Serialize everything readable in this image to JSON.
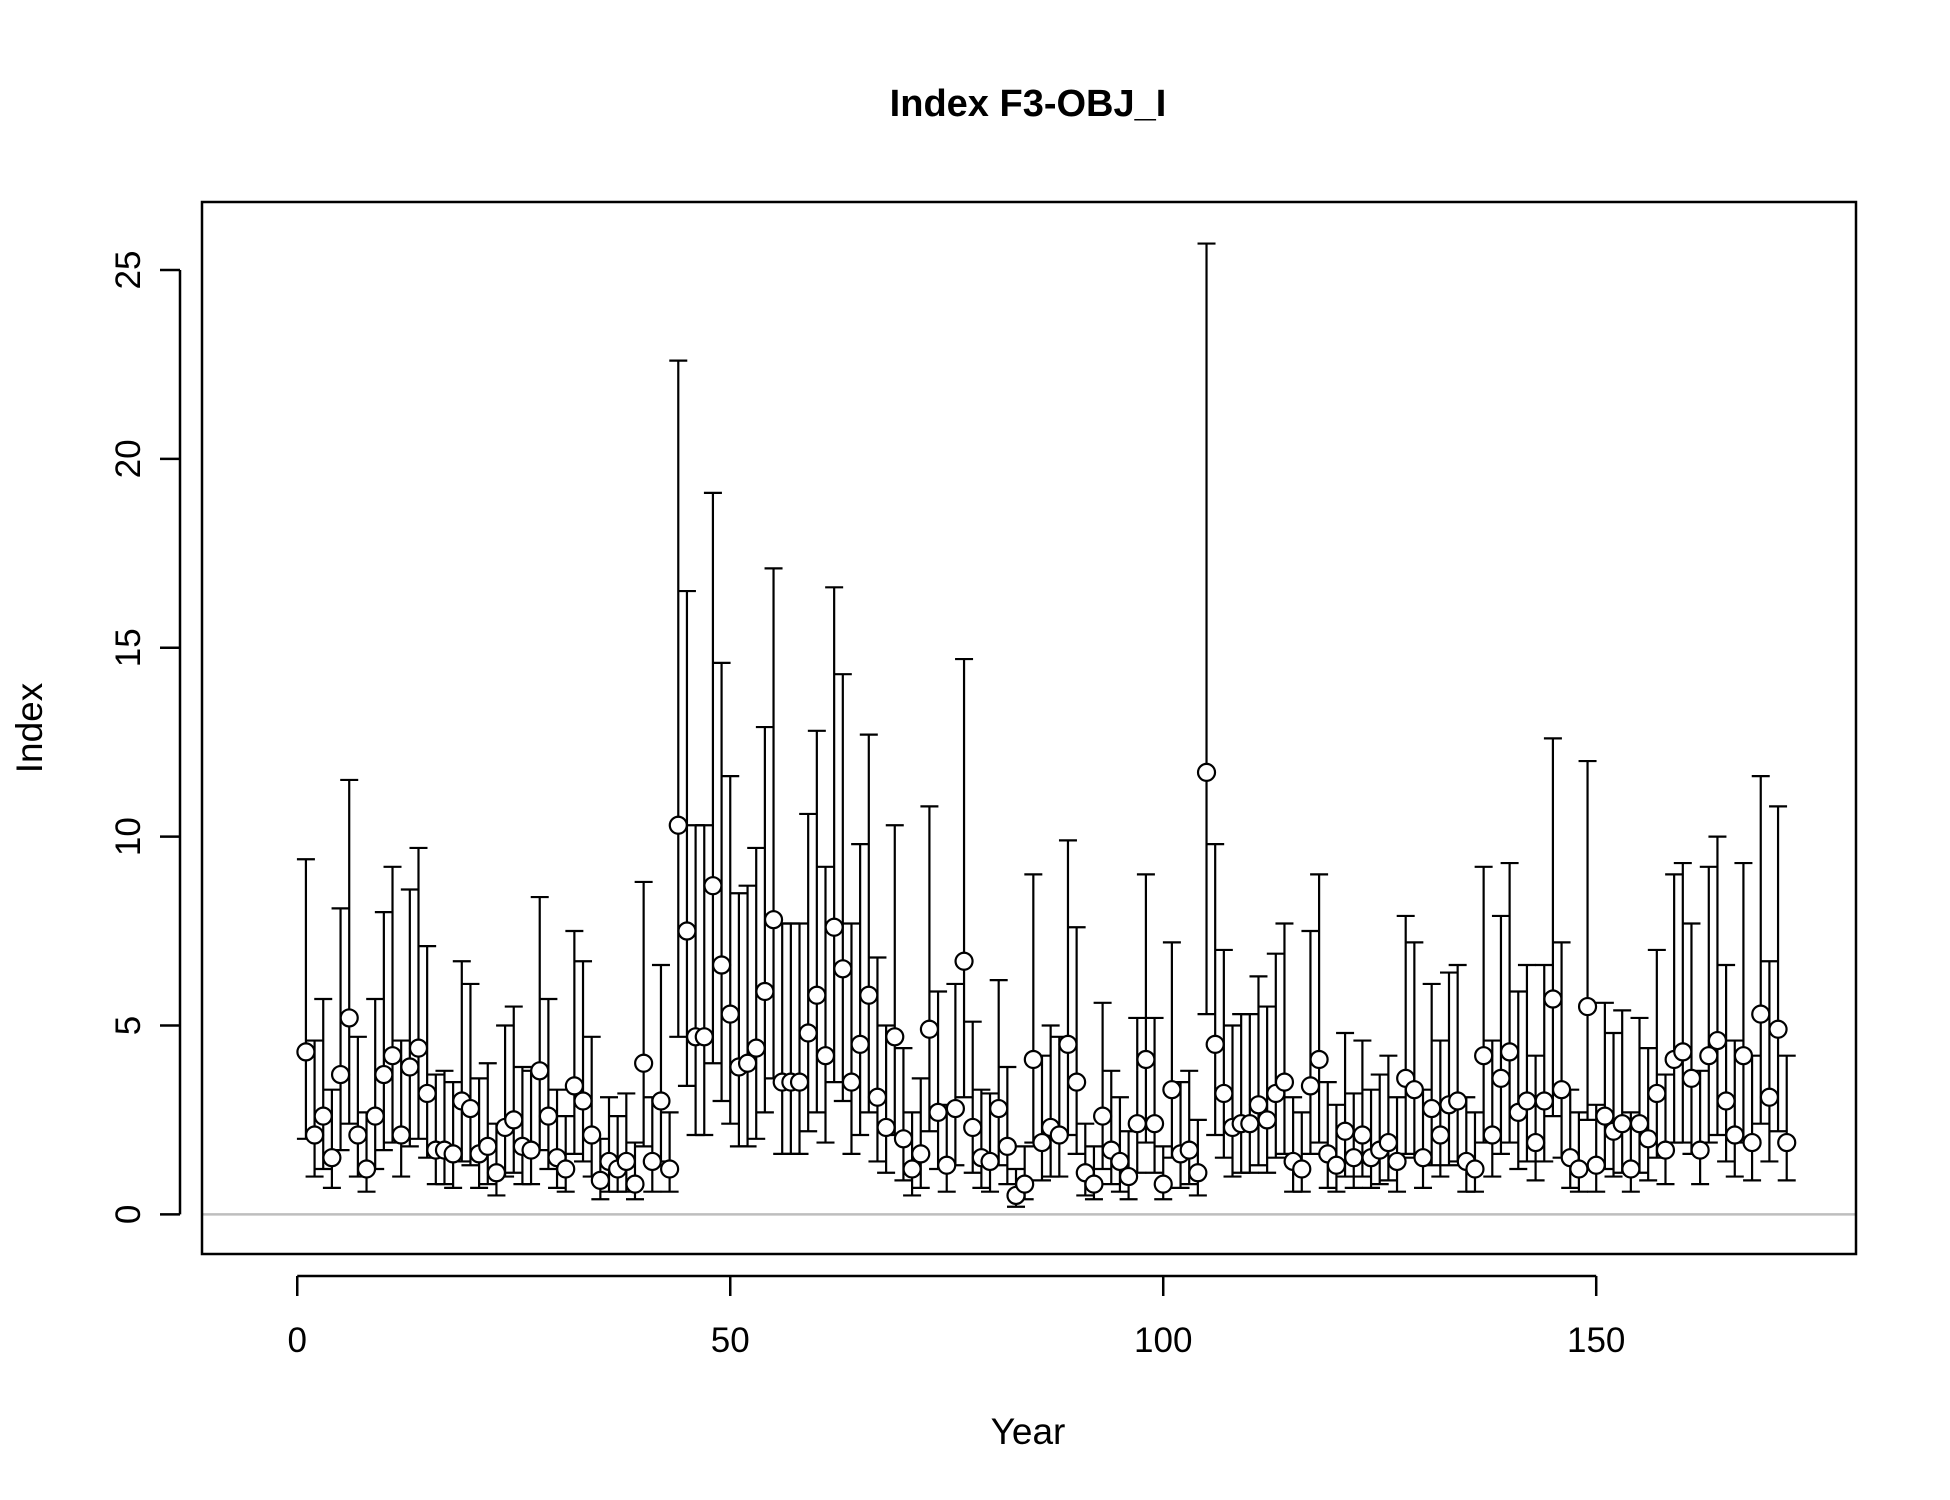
{
  "chart_data": {
    "type": "scatter",
    "title": "Index F3-OBJ_I",
    "xlabel": "Year",
    "ylabel": "Index",
    "xlim": [
      -11,
      180
    ],
    "ylim": [
      -1.05,
      26.8
    ],
    "xticks": [
      0,
      50,
      100,
      150
    ],
    "yticks": [
      0,
      5,
      10,
      15,
      20,
      25
    ],
    "xtick_labels": [
      "0",
      "50",
      "100",
      "150"
    ],
    "ytick_labels": [
      "0",
      "5",
      "10",
      "15",
      "20",
      "25"
    ],
    "reference_line_y": 0,
    "grid": false,
    "legend": "none",
    "colors": {
      "points": "#ffffff",
      "outline": "#000000",
      "reference_line": "#bebebe"
    },
    "x": [
      1,
      2,
      3,
      4,
      5,
      6,
      7,
      8,
      9,
      10,
      11,
      12,
      13,
      14,
      15,
      16,
      17,
      18,
      19,
      20,
      21,
      22,
      23,
      24,
      25,
      26,
      27,
      28,
      29,
      30,
      31,
      32,
      33,
      34,
      35,
      36,
      37,
      38,
      39,
      40,
      41,
      42,
      43,
      44,
      45,
      46,
      47,
      48,
      49,
      50,
      51,
      52,
      53,
      54,
      55,
      56,
      57,
      58,
      59,
      60,
      61,
      62,
      63,
      64,
      65,
      66,
      67,
      68,
      69,
      70,
      71,
      72,
      73,
      74,
      75,
      76,
      77,
      78,
      79,
      80,
      81,
      82,
      83,
      84,
      85,
      86,
      87,
      88,
      89,
      90,
      91,
      92,
      93,
      94,
      95,
      96,
      97,
      98,
      99,
      100,
      101,
      102,
      103,
      104,
      105,
      106,
      107,
      108,
      109,
      110,
      111,
      112,
      113,
      114,
      115,
      116,
      117,
      118,
      119,
      120,
      121,
      122,
      123,
      124,
      125,
      126,
      127,
      128,
      129,
      130,
      131,
      132,
      133,
      134,
      135,
      136,
      137,
      138,
      139,
      140,
      141,
      142,
      143,
      144,
      145,
      146,
      147,
      148,
      149,
      150,
      151,
      152,
      153,
      154,
      155,
      156,
      157,
      158,
      159,
      160,
      161,
      162,
      163,
      164,
      165,
      166,
      167,
      168,
      169,
      170,
      171,
      172
    ],
    "values": [
      4.3,
      2.1,
      2.6,
      1.5,
      3.7,
      5.2,
      2.1,
      1.2,
      2.6,
      3.7,
      4.2,
      2.1,
      3.9,
      4.4,
      3.2,
      1.7,
      1.7,
      1.6,
      3.0,
      2.8,
      1.6,
      1.8,
      1.1,
      2.3,
      2.5,
      1.8,
      1.7,
      3.8,
      2.6,
      1.5,
      1.2,
      3.4,
      3.0,
      2.1,
      0.9,
      1.4,
      1.2,
      1.4,
      0.8,
      4.0,
      1.4,
      3.0,
      1.2,
      10.3,
      7.5,
      4.7,
      4.7,
      8.7,
      6.6,
      5.3,
      3.9,
      4.0,
      4.4,
      5.9,
      7.8,
      3.5,
      3.5,
      3.5,
      4.8,
      5.8,
      4.2,
      7.6,
      6.5,
      3.5,
      4.5,
      5.8,
      3.1,
      2.3,
      4.7,
      2.0,
      1.2,
      1.6,
      4.9,
      2.7,
      1.3,
      2.8,
      6.7,
      2.3,
      1.5,
      1.4,
      2.8,
      1.8,
      0.5,
      0.8,
      4.1,
      1.9,
      2.3,
      2.1,
      4.5,
      3.5,
      1.1,
      0.8,
      2.6,
      1.7,
      1.4,
      1.0,
      2.4,
      4.1,
      2.4,
      0.8,
      3.3,
      1.6,
      1.7,
      1.1,
      11.7,
      4.5,
      3.2,
      2.3,
      2.4,
      2.4,
      2.9,
      2.5,
      3.2,
      3.5,
      1.4,
      1.2,
      3.4,
      4.1,
      1.6,
      1.3,
      2.2,
      1.5,
      2.1,
      1.5,
      1.7,
      1.9,
      1.4,
      3.6,
      3.3,
      1.5,
      2.8,
      2.1,
      2.9,
      3.0,
      1.4,
      1.2,
      4.2,
      2.1,
      3.6,
      4.3,
      2.7,
      3.0,
      1.9,
      3.0,
      5.7,
      3.3,
      1.5,
      1.2,
      5.5,
      1.3,
      2.6,
      2.2,
      2.4,
      1.2,
      2.4,
      2.0,
      3.2,
      1.7,
      4.1,
      4.3,
      3.6,
      1.7,
      4.2,
      4.6,
      3.0,
      2.1,
      4.2,
      1.9,
      5.3,
      3.1,
      4.9,
      1.9
    ],
    "upper": [
      9.4,
      4.6,
      5.7,
      3.3,
      8.1,
      11.5,
      4.7,
      2.7,
      5.7,
      8.0,
      9.2,
      4.6,
      8.6,
      9.7,
      7.1,
      3.7,
      3.8,
      3.5,
      6.7,
      6.1,
      3.6,
      4.0,
      2.4,
      5.0,
      5.5,
      3.9,
      3.8,
      8.4,
      5.7,
      3.3,
      2.6,
      7.5,
      6.7,
      4.7,
      2.0,
      3.1,
      2.6,
      3.2,
      1.9,
      8.8,
      3.1,
      6.6,
      2.7,
      22.6,
      16.5,
      10.3,
      10.3,
      19.1,
      14.6,
      11.6,
      8.5,
      8.7,
      9.7,
      12.9,
      17.1,
      7.7,
      7.7,
      7.7,
      10.6,
      12.8,
      9.2,
      16.6,
      14.3,
      7.7,
      9.8,
      12.7,
      6.8,
      5.0,
      10.3,
      4.4,
      2.7,
      3.6,
      10.8,
      5.9,
      2.9,
      6.1,
      14.7,
      5.1,
      3.3,
      3.2,
      6.2,
      3.9,
      1.2,
      1.8,
      9.0,
      4.2,
      5.0,
      4.7,
      9.9,
      7.6,
      2.4,
      1.8,
      5.6,
      3.8,
      3.1,
      2.2,
      5.2,
      9.0,
      5.2,
      1.8,
      7.2,
      3.5,
      3.8,
      2.5,
      25.7,
      9.8,
      7.0,
      5.0,
      5.3,
      5.3,
      6.3,
      5.5,
      6.9,
      7.7,
      3.1,
      2.7,
      7.5,
      9.0,
      3.5,
      2.9,
      4.8,
      3.2,
      4.6,
      3.3,
      3.7,
      4.2,
      3.1,
      7.9,
      7.2,
      3.3,
      6.1,
      4.6,
      6.4,
      6.6,
      3.1,
      2.7,
      9.2,
      4.6,
      7.9,
      9.3,
      5.9,
      6.6,
      4.2,
      6.6,
      12.6,
      7.2,
      3.3,
      2.7,
      12.0,
      2.9,
      5.6,
      4.8,
      5.4,
      2.7,
      5.2,
      4.4,
      7.0,
      3.7,
      9.0,
      9.3,
      7.7,
      3.8,
      9.2,
      10.0,
      6.6,
      4.6,
      9.3,
      4.2,
      11.6,
      6.7,
      10.8,
      4.2
    ],
    "lower": [
      2.0,
      1.0,
      1.2,
      0.7,
      1.7,
      2.4,
      1.0,
      0.6,
      1.2,
      1.7,
      1.9,
      1.0,
      1.8,
      2.0,
      1.5,
      0.8,
      0.8,
      0.7,
      1.4,
      1.3,
      0.7,
      0.8,
      0.5,
      1.0,
      1.1,
      0.8,
      0.8,
      1.7,
      1.2,
      0.7,
      0.6,
      1.6,
      1.4,
      1.0,
      0.4,
      0.6,
      0.6,
      0.6,
      0.4,
      1.8,
      0.6,
      1.4,
      0.6,
      4.7,
      3.4,
      2.1,
      2.1,
      4.0,
      3.0,
      2.4,
      1.8,
      1.8,
      2.0,
      2.7,
      3.6,
      1.6,
      1.6,
      1.6,
      2.2,
      2.7,
      1.9,
      3.5,
      3.0,
      1.6,
      2.1,
      2.7,
      1.4,
      1.1,
      2.1,
      0.9,
      0.5,
      0.7,
      2.2,
      1.2,
      0.6,
      1.3,
      3.1,
      1.1,
      0.7,
      0.6,
      1.3,
      0.8,
      0.2,
      0.4,
      1.9,
      0.9,
      1.0,
      1.0,
      2.1,
      1.6,
      0.5,
      0.4,
      1.2,
      0.8,
      0.6,
      0.4,
      1.1,
      1.9,
      1.1,
      0.4,
      1.5,
      0.7,
      0.8,
      0.5,
      5.3,
      2.1,
      1.5,
      1.0,
      1.1,
      1.1,
      1.3,
      1.1,
      1.5,
      1.6,
      0.6,
      0.6,
      1.6,
      1.9,
      0.7,
      0.6,
      1.0,
      0.7,
      1.0,
      0.7,
      0.8,
      0.9,
      0.6,
      1.6,
      1.5,
      0.7,
      1.3,
      1.0,
      1.3,
      1.4,
      0.6,
      0.6,
      1.9,
      1.0,
      1.6,
      1.9,
      1.2,
      1.4,
      0.9,
      1.4,
      2.6,
      1.5,
      0.7,
      0.6,
      2.5,
      0.6,
      1.2,
      1.0,
      1.1,
      0.6,
      1.1,
      0.9,
      1.5,
      0.8,
      1.9,
      1.9,
      1.6,
      0.8,
      1.9,
      2.1,
      1.4,
      1.0,
      1.9,
      0.9,
      2.4,
      1.4,
      2.2,
      0.9
    ]
  }
}
